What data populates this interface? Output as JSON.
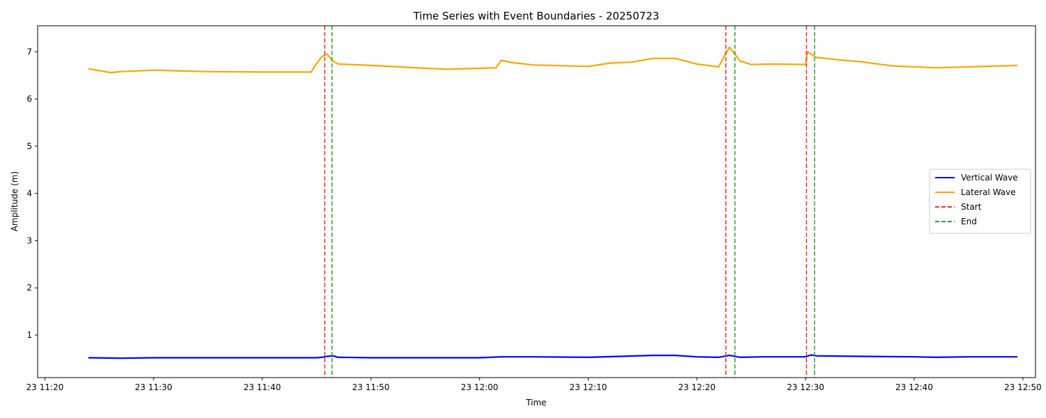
{
  "chart_data": {
    "type": "line",
    "title": "Time Series with Event Boundaries - 20250723",
    "xlabel": "Time",
    "ylabel": "Amplitude (m)",
    "x_axis": {
      "unit": "time",
      "range": [
        "11:19:20",
        "12:51:10"
      ],
      "tick_values": [
        "11:20",
        "11:30",
        "11:40",
        "11:50",
        "12:00",
        "12:10",
        "12:20",
        "12:30",
        "12:40",
        "12:50"
      ],
      "tick_labels": [
        "23 11:20",
        "23 11:30",
        "23 11:40",
        "23 11:50",
        "23 12:00",
        "23 12:10",
        "23 12:20",
        "23 12:30",
        "23 12:40",
        "23 12:50"
      ]
    },
    "y_axis": {
      "range": [
        0.1,
        7.55
      ],
      "ticks": [
        1,
        2,
        3,
        4,
        5,
        6,
        7
      ]
    },
    "grid": false,
    "legend": {
      "placement": "center-right",
      "entries": [
        {
          "label": "Vertical Wave",
          "color": "#0000ff",
          "style": "solid"
        },
        {
          "label": "Lateral Wave",
          "color": "#ffa500",
          "style": "solid"
        },
        {
          "label": "Start",
          "color": "#ff2a2a",
          "style": "dashed"
        },
        {
          "label": "End",
          "color": "#2ca02c",
          "style": "dashed"
        }
      ]
    },
    "series": [
      {
        "name": "Vertical Wave",
        "color": "#0000ff",
        "points": [
          [
            "11:24:00",
            0.52
          ],
          [
            "11:27:00",
            0.51
          ],
          [
            "11:30:00",
            0.52
          ],
          [
            "11:35:00",
            0.52
          ],
          [
            "11:40:00",
            0.52
          ],
          [
            "11:45:00",
            0.52
          ],
          [
            "11:45:30",
            0.53
          ],
          [
            "11:46:00",
            0.55
          ],
          [
            "11:46:30",
            0.56
          ],
          [
            "11:47:00",
            0.53
          ],
          [
            "11:50:00",
            0.52
          ],
          [
            "11:55:00",
            0.52
          ],
          [
            "12:00:00",
            0.52
          ],
          [
            "12:02:00",
            0.54
          ],
          [
            "12:05:00",
            0.54
          ],
          [
            "12:10:00",
            0.53
          ],
          [
            "12:13:00",
            0.55
          ],
          [
            "12:16:00",
            0.57
          ],
          [
            "12:18:00",
            0.57
          ],
          [
            "12:20:00",
            0.54
          ],
          [
            "12:22:00",
            0.53
          ],
          [
            "12:23:00",
            0.57
          ],
          [
            "12:24:00",
            0.53
          ],
          [
            "12:26:00",
            0.54
          ],
          [
            "12:30:00",
            0.54
          ],
          [
            "12:30:30",
            0.58
          ],
          [
            "12:31:00",
            0.56
          ],
          [
            "12:35:00",
            0.55
          ],
          [
            "12:40:00",
            0.54
          ],
          [
            "12:42:00",
            0.53
          ],
          [
            "12:45:00",
            0.54
          ],
          [
            "12:49:30",
            0.54
          ]
        ]
      },
      {
        "name": "Lateral Wave",
        "color": "#ffa500",
        "points": [
          [
            "11:24:00",
            6.64
          ],
          [
            "11:25:00",
            6.6
          ],
          [
            "11:26:00",
            6.56
          ],
          [
            "11:27:00",
            6.58
          ],
          [
            "11:30:00",
            6.61
          ],
          [
            "11:35:00",
            6.58
          ],
          [
            "11:40:00",
            6.57
          ],
          [
            "11:44:30",
            6.57
          ],
          [
            "11:45:00",
            6.75
          ],
          [
            "11:45:30",
            6.9
          ],
          [
            "11:46:00",
            6.95
          ],
          [
            "11:46:30",
            6.8
          ],
          [
            "11:47:00",
            6.74
          ],
          [
            "11:50:00",
            6.71
          ],
          [
            "11:55:00",
            6.65
          ],
          [
            "11:57:00",
            6.63
          ],
          [
            "12:00:00",
            6.65
          ],
          [
            "12:01:30",
            6.66
          ],
          [
            "12:02:00",
            6.82
          ],
          [
            "12:03:00",
            6.77
          ],
          [
            "12:05:00",
            6.72
          ],
          [
            "12:10:00",
            6.69
          ],
          [
            "12:12:00",
            6.76
          ],
          [
            "12:14:00",
            6.78
          ],
          [
            "12:16:00",
            6.86
          ],
          [
            "12:18:00",
            6.86
          ],
          [
            "12:20:00",
            6.74
          ],
          [
            "12:22:00",
            6.68
          ],
          [
            "12:22:30",
            6.9
          ],
          [
            "12:23:00",
            7.1
          ],
          [
            "12:23:30",
            6.95
          ],
          [
            "12:24:00",
            6.8
          ],
          [
            "12:25:00",
            6.73
          ],
          [
            "12:27:00",
            6.74
          ],
          [
            "12:30:00",
            6.73
          ],
          [
            "12:30:10",
            7.0
          ],
          [
            "12:31:00",
            6.88
          ],
          [
            "12:33:00",
            6.83
          ],
          [
            "12:35:00",
            6.79
          ],
          [
            "12:38:00",
            6.7
          ],
          [
            "12:42:00",
            6.66
          ],
          [
            "12:45:00",
            6.68
          ],
          [
            "12:49:30",
            6.71
          ]
        ]
      }
    ],
    "event_lines": [
      {
        "type": "Start",
        "time": "11:45:45",
        "color": "#ff2a2a"
      },
      {
        "type": "End",
        "time": "11:46:25",
        "color": "#2ca02c"
      },
      {
        "type": "Start",
        "time": "12:22:40",
        "color": "#ff2a2a"
      },
      {
        "type": "End",
        "time": "12:23:30",
        "color": "#2ca02c"
      },
      {
        "type": "Start",
        "time": "12:30:05",
        "color": "#ff2a2a"
      },
      {
        "type": "End",
        "time": "12:30:50",
        "color": "#2ca02c"
      }
    ]
  }
}
